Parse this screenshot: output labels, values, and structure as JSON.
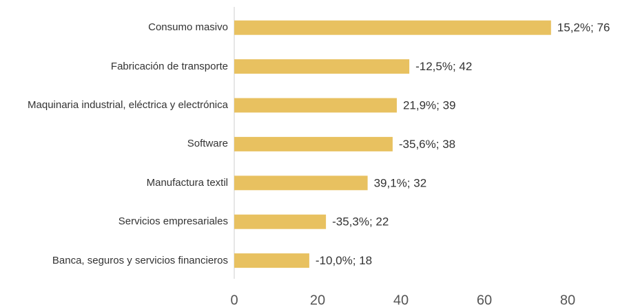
{
  "chart_data": {
    "type": "bar",
    "orientation": "horizontal",
    "categories": [
      "Consumo masivo",
      "Fabricación de transporte",
      "Maquinaria industrial, eléctrica y electrónica",
      "Software",
      "Manufactura textil",
      "Servicios empresariales",
      "Banca, seguros y servicios financieros"
    ],
    "values": [
      76,
      42,
      39,
      38,
      32,
      22,
      18
    ],
    "value_labels": [
      "15,2%; 76",
      "-12,5%; 42",
      "21,9%; 39",
      "-35,6%; 38",
      "39,1%; 32",
      "-35,3%; 22",
      "-10,0%; 18"
    ],
    "color": "#e8c160",
    "xlim": [
      0,
      80
    ],
    "xticks": [
      0,
      20,
      40,
      60,
      80
    ],
    "grid": false
  }
}
